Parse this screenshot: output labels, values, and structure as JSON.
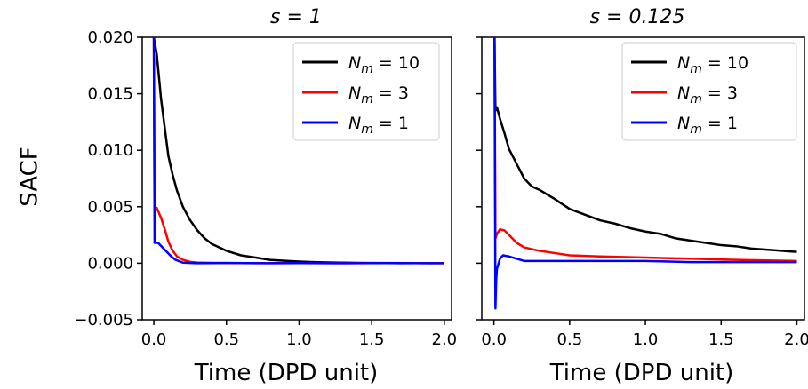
{
  "chart_data": [
    {
      "type": "line",
      "title": "s = 1",
      "xlabel": "Time (DPD unit)",
      "ylabel": "SACF",
      "xlim": [
        -0.08,
        2.05
      ],
      "ylim": [
        -0.005,
        0.02
      ],
      "xticks": [
        "0.0",
        "0.5",
        "1.0",
        "1.5",
        "2.0"
      ],
      "yticks": [
        "−0.005",
        "0.000",
        "0.005",
        "0.010",
        "0.015",
        "0.020"
      ],
      "legend": "top-right",
      "series": [
        {
          "name": "N_m = 10",
          "label": "Nm = 10",
          "color": "#000000",
          "x": [
            0,
            0.02,
            0.05,
            0.08,
            0.1,
            0.13,
            0.16,
            0.2,
            0.25,
            0.3,
            0.35,
            0.4,
            0.5,
            0.6,
            0.7,
            0.8,
            0.9,
            1.0,
            1.1,
            1.2,
            1.3,
            1.4,
            1.5,
            1.6,
            1.7,
            1.8,
            1.9,
            2.0
          ],
          "y": [
            0.02,
            0.0185,
            0.0145,
            0.0115,
            0.0095,
            0.0078,
            0.0064,
            0.005,
            0.0038,
            0.0029,
            0.0022,
            0.0017,
            0.0011,
            0.0007,
            0.0005,
            0.0003,
            0.00022,
            0.00015,
            0.0001,
            7e-05,
            5e-05,
            3e-05,
            2e-05,
            1e-05,
            0.0,
            1e-05,
            0.0,
            1e-05
          ]
        },
        {
          "name": "N_m = 3",
          "label": "Nm = 3",
          "color": "#ff0000",
          "x": [
            0,
            0.005,
            0.02,
            0.05,
            0.08,
            0.1,
            0.13,
            0.16,
            0.2,
            0.25,
            0.3,
            0.4,
            0.5,
            0.7,
            1.0,
            1.3,
            1.6,
            2.0
          ],
          "y": [
            0.02,
            0.0048,
            0.0049,
            0.004,
            0.0028,
            0.0019,
            0.0011,
            0.0006,
            0.0003,
            0.00012,
            6e-05,
            3e-05,
            2e-05,
            0.0,
            1e-05,
            0.0,
            2e-05,
            0.0
          ]
        },
        {
          "name": "N_m = 1",
          "label": "Nm = 1",
          "color": "#0000ff",
          "x": [
            0,
            0.005,
            0.03,
            0.06,
            0.09,
            0.12,
            0.15,
            0.2,
            0.3,
            0.5,
            0.8,
            1.0,
            1.3,
            1.6,
            2.0
          ],
          "y": [
            0.02,
            0.0018,
            0.0018,
            0.0014,
            0.001,
            0.0006,
            0.0003,
            5e-05,
            0.0,
            2e-05,
            0.0,
            1e-05,
            0.0,
            1e-05,
            0.0
          ]
        }
      ]
    },
    {
      "type": "line",
      "title": "s = 0.125",
      "xlabel": "Time (DPD unit)",
      "ylabel": "",
      "xlim": [
        -0.08,
        2.05
      ],
      "ylim": [
        -0.005,
        0.02
      ],
      "xticks": [
        "0.0",
        "0.5",
        "1.0",
        "1.5",
        "2.0"
      ],
      "legend": "top-right",
      "series": [
        {
          "name": "N_m = 10",
          "label": "Nm = 10",
          "color": "#000000",
          "x": [
            0,
            0.004,
            0.01,
            0.02,
            0.04,
            0.07,
            0.1,
            0.15,
            0.2,
            0.25,
            0.3,
            0.4,
            0.5,
            0.6,
            0.7,
            0.8,
            0.9,
            1.0,
            1.1,
            1.2,
            1.3,
            1.4,
            1.5,
            1.6,
            1.7,
            1.8,
            1.9,
            2.0
          ],
          "y": [
            0.02,
            0.02,
            0.0135,
            0.0138,
            0.0128,
            0.0115,
            0.0101,
            0.0088,
            0.0075,
            0.0068,
            0.0065,
            0.0057,
            0.0048,
            0.0043,
            0.0038,
            0.0035,
            0.0031,
            0.0028,
            0.0026,
            0.0022,
            0.002,
            0.0018,
            0.0016,
            0.0015,
            0.0013,
            0.0012,
            0.0011,
            0.001
          ]
        },
        {
          "name": "N_m = 3",
          "label": "Nm = 3",
          "color": "#ff0000",
          "x": [
            0,
            0.004,
            0.01,
            0.02,
            0.04,
            0.07,
            0.1,
            0.15,
            0.2,
            0.3,
            0.4,
            0.5,
            0.7,
            1.0,
            1.3,
            1.6,
            2.0
          ],
          "y": [
            0.02,
            0.02,
            0.0022,
            0.0026,
            0.003,
            0.0029,
            0.0025,
            0.0018,
            0.0014,
            0.0011,
            0.0009,
            0.0007,
            0.0006,
            0.0005,
            0.0004,
            0.0003,
            0.0002
          ]
        },
        {
          "name": "N_m = 1",
          "label": "Nm = 1",
          "color": "#0000ff",
          "x": [
            0,
            0.004,
            0.01,
            0.015,
            0.02,
            0.04,
            0.06,
            0.1,
            0.15,
            0.2,
            0.3,
            0.5,
            0.7,
            1.0,
            1.3,
            1.6,
            2.0
          ],
          "y": [
            0.02,
            0.02,
            -0.004,
            -0.0015,
            -0.0005,
            0.0004,
            0.0007,
            0.0006,
            0.0004,
            0.0002,
            0.0002,
            0.0002,
            0.0002,
            0.0002,
            0.0001,
            0.0001,
            0.0001
          ]
        }
      ]
    }
  ]
}
